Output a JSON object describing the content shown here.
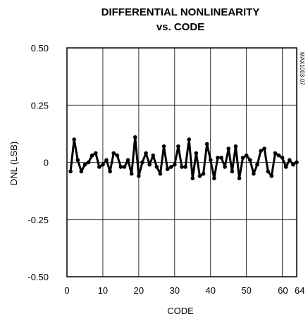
{
  "chart_data": {
    "type": "line",
    "title": "DIFFERENTIAL NONLINEARITY",
    "subtitle": "vs. CODE",
    "xlabel": "CODE",
    "ylabel": "DNL (LSB)",
    "xlim": [
      0,
      64
    ],
    "ylim": [
      -0.5,
      0.5
    ],
    "x_ticks": [
      0,
      10,
      20,
      30,
      40,
      50,
      60,
      64
    ],
    "y_ticks": [
      0.5,
      0.25,
      0,
      -0.25,
      -0.5
    ],
    "x_tick_labels": [
      "0",
      "10",
      "20",
      "30",
      "40",
      "50",
      "60",
      "64"
    ],
    "y_tick_labels": [
      "0.50",
      "0.25",
      "0",
      "-0.25",
      "-0.50"
    ],
    "grid": true,
    "figure_id": "MAX1003-07",
    "series": [
      {
        "color": "#000000",
        "x": [
          1,
          2,
          3,
          4,
          5,
          6,
          7,
          8,
          9,
          10,
          11,
          12,
          13,
          14,
          15,
          16,
          17,
          18,
          19,
          20,
          21,
          22,
          23,
          24,
          25,
          26,
          27,
          28,
          29,
          30,
          31,
          32,
          33,
          34,
          35,
          36,
          37,
          38,
          39,
          40,
          41,
          42,
          43,
          44,
          45,
          46,
          47,
          48,
          49,
          50,
          51,
          52,
          53,
          54,
          55,
          56,
          57,
          58,
          59,
          60,
          61,
          62,
          63,
          64
        ],
        "values": [
          -0.04,
          0.1,
          0.01,
          -0.04,
          -0.01,
          0.0,
          0.03,
          0.04,
          -0.02,
          -0.01,
          0.01,
          -0.04,
          0.04,
          0.03,
          -0.02,
          -0.02,
          0.01,
          -0.05,
          0.11,
          -0.06,
          0.0,
          0.04,
          -0.01,
          0.03,
          -0.02,
          -0.05,
          0.07,
          -0.03,
          -0.02,
          -0.01,
          0.07,
          -0.02,
          -0.02,
          0.1,
          -0.07,
          0.04,
          -0.06,
          -0.05,
          0.08,
          0.01,
          -0.07,
          0.02,
          0.02,
          -0.02,
          0.06,
          -0.04,
          0.07,
          -0.07,
          0.02,
          0.03,
          0.01,
          -0.05,
          -0.01,
          0.05,
          0.06,
          -0.04,
          -0.06,
          0.04,
          0.03,
          0.02,
          -0.02,
          0.01,
          -0.01,
          0.0
        ]
      }
    ]
  }
}
